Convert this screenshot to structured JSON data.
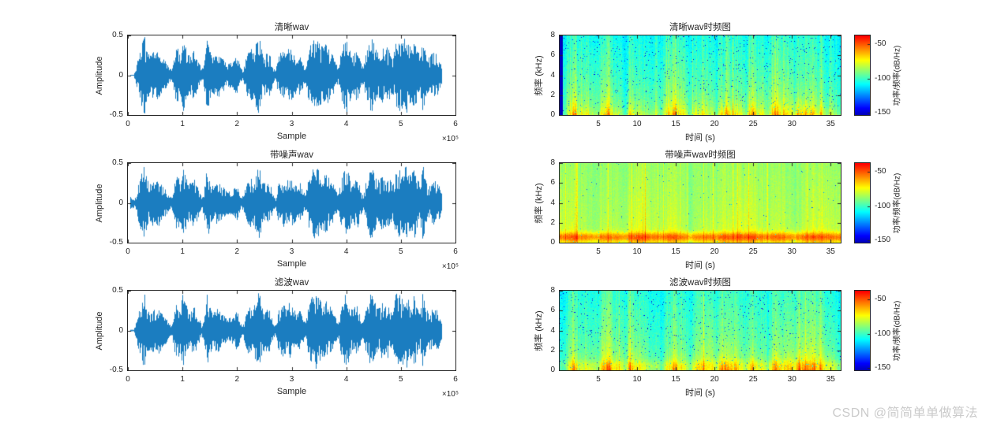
{
  "figure": {
    "background": "#ffffff",
    "axis_color": "#262626",
    "line_color": "#0f76bd",
    "colormap": "jet"
  },
  "watermark": {
    "text": "CSDN @简简单单做算法",
    "color": "#cbcbcb"
  },
  "chart_data": {
    "shared": {
      "description": "Speech amplitude envelope sampled every 0.05e5 samples (0..5.75e5), same utterances in all six panels",
      "envelope_step_1e5": 0.05,
      "speech_envelope": [
        0.005,
        0.005,
        0.005,
        0.12,
        0.28,
        0.4,
        0.5,
        0.3,
        0.24,
        0.3,
        0.26,
        0.32,
        0.25,
        0.2,
        0.16,
        0.1,
        0.06,
        0.28,
        0.36,
        0.3,
        0.5,
        0.36,
        0.26,
        0.26,
        0.32,
        0.26,
        0.16,
        0.06,
        0.22,
        0.5,
        0.3,
        0.22,
        0.26,
        0.3,
        0.22,
        0.2,
        0.16,
        0.16,
        0.16,
        0.2,
        0.26,
        0.12,
        0.05,
        0.2,
        0.3,
        0.34,
        0.3,
        0.42,
        0.5,
        0.3,
        0.26,
        0.3,
        0.26,
        0.12,
        0.05,
        0.24,
        0.3,
        0.34,
        0.26,
        0.36,
        0.3,
        0.26,
        0.2,
        0.26,
        0.16,
        0.1,
        0.3,
        0.4,
        0.46,
        0.5,
        0.4,
        0.36,
        0.4,
        0.36,
        0.3,
        0.26,
        0.16,
        0.1,
        0.3,
        0.4,
        0.5,
        0.36,
        0.26,
        0.3,
        0.34,
        0.2,
        0.1,
        0.26,
        0.36,
        0.5,
        0.4,
        0.3,
        0.3,
        0.36,
        0.3,
        0.36,
        0.3,
        0.22,
        0.46,
        0.5,
        0.4,
        0.46,
        0.5,
        0.36,
        0.4,
        0.46,
        0.3,
        0.26,
        0.5,
        0.3,
        0.22,
        0.26,
        0.3,
        0.26,
        0.22,
        0.1
      ]
    },
    "waveforms": [
      {
        "type": "line",
        "title": "清晰wav",
        "xlabel": "Sample",
        "ylabel": "Amplitude",
        "x_exponent": "×10⁵",
        "xlim_1e5": [
          0,
          6
        ],
        "ylim": [
          -0.5,
          0.5
        ],
        "x_ticks": [
          0,
          1,
          2,
          3,
          4,
          5,
          6
        ],
        "y_ticks": [
          0.5,
          0,
          -0.5
        ],
        "data_end_1e5": 5.75,
        "render": {
          "noise_floor": 0.006,
          "amp_scale": 1.0,
          "seed": 7,
          "noisy": false
        }
      },
      {
        "type": "line",
        "title": "带噪声wav",
        "xlabel": "Sample",
        "ylabel": "Amplitude",
        "x_exponent": "×10⁵",
        "xlim_1e5": [
          0,
          6
        ],
        "ylim": [
          -0.5,
          0.5
        ],
        "x_ticks": [
          0,
          1,
          2,
          3,
          4,
          5,
          6
        ],
        "y_ticks": [
          0.5,
          0,
          -0.5
        ],
        "data_end_1e5": 5.75,
        "render": {
          "noise_floor": 0.07,
          "amp_scale": 1.02,
          "seed": 13,
          "noisy": true
        }
      },
      {
        "type": "line",
        "title": "滤波wav",
        "xlabel": "Sample",
        "ylabel": "Amplitude",
        "x_exponent": "×10⁵",
        "xlim_1e5": [
          0,
          6
        ],
        "ylim": [
          -0.5,
          0.5
        ],
        "x_ticks": [
          0,
          1,
          2,
          3,
          4,
          5,
          6
        ],
        "y_ticks": [
          0.5,
          0,
          -0.5
        ],
        "data_end_1e5": 5.75,
        "render": {
          "noise_floor": 0.011,
          "amp_scale": 1.0,
          "seed": 21,
          "noisy": false
        }
      }
    ],
    "spectrograms": [
      {
        "type": "heatmap",
        "title": "清晰wav时频图",
        "xlabel": "时间 (s)",
        "ylabel": "频率 (kHz)",
        "tlim_s": [
          0,
          36.3
        ],
        "flim_khz": [
          0,
          8
        ],
        "x_ticks": [
          5,
          10,
          15,
          20,
          25,
          30,
          35
        ],
        "y_ticks": [
          0,
          2,
          4,
          6,
          8
        ],
        "render": {
          "seed": 31,
          "base_db": -112,
          "tilt_db": 12,
          "speech_gain_db": 16,
          "low_gain_db": 34,
          "low_decay_khz": 1.1,
          "band_gain_db": 0,
          "band_center_khz": 0.6,
          "band_sigma2": 0.22,
          "noise_db": 7,
          "speck_prob": 0.02,
          "col_jitter_db": 9,
          "red_col_prob": 0.015,
          "left_stripe": true
        }
      },
      {
        "type": "heatmap",
        "title": "带噪声wav时频图",
        "xlabel": "时间 (s)",
        "ylabel": "频率 (kHz)",
        "tlim_s": [
          0,
          36.3
        ],
        "flim_khz": [
          0,
          8
        ],
        "x_ticks": [
          5,
          10,
          15,
          20,
          25,
          30,
          35
        ],
        "y_ticks": [
          0,
          2,
          4,
          6,
          8
        ],
        "render": {
          "seed": 47,
          "base_db": -89,
          "tilt_db": 5,
          "speech_gain_db": 4,
          "low_gain_db": 9,
          "low_decay_khz": 1.3,
          "band_gain_db": 26,
          "band_center_khz": 0.6,
          "band_sigma2": 0.22,
          "noise_db": 5,
          "speck_prob": 0.004,
          "col_jitter_db": 6,
          "red_col_prob": 0.05,
          "left_stripe": false
        }
      },
      {
        "type": "heatmap",
        "title": "滤波wav时频图",
        "xlabel": "时间 (s)",
        "ylabel": "频率 (kHz)",
        "tlim_s": [
          0,
          36.3
        ],
        "flim_khz": [
          0,
          8
        ],
        "x_ticks": [
          5,
          10,
          15,
          20,
          25,
          30,
          35
        ],
        "y_ticks": [
          0,
          2,
          4,
          6,
          8
        ],
        "render": {
          "seed": 63,
          "base_db": -109,
          "tilt_db": 11,
          "speech_gain_db": 15,
          "low_gain_db": 36,
          "low_decay_khz": 1.0,
          "band_gain_db": 6,
          "band_center_khz": 0.6,
          "band_sigma2": 0.2,
          "noise_db": 7,
          "speck_prob": 0.022,
          "col_jitter_db": 9,
          "red_col_prob": 0.02,
          "left_stripe": false
        }
      }
    ],
    "colorbar": {
      "label": "功率/频率(dB/Hz)",
      "ticks": [
        -50,
        -100,
        -150
      ],
      "axis_max_db": -37,
      "axis_min_db": -153,
      "map_max_db": -40,
      "map_min_db": -160
    }
  }
}
